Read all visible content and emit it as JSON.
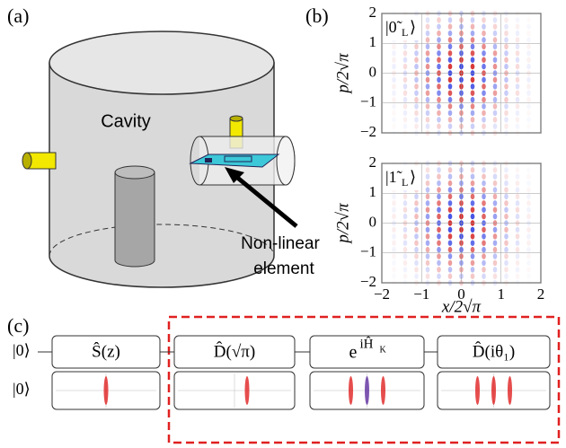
{
  "panel_a": {
    "label": "(a)",
    "cavity": "Cavity",
    "element": [
      "Non-linear",
      "element"
    ]
  },
  "panel_b": {
    "label": "(b)",
    "plots": [
      {
        "state": {
          "main": "|0̃",
          "sub": "L",
          "close": "⟩"
        }
      },
      {
        "state": {
          "main": "|1̃",
          "sub": "L",
          "close": "⟩"
        }
      }
    ],
    "ylabel": "p/2√π",
    "xlabel": "x/2√π",
    "xlim": [
      -2,
      2
    ],
    "ylim": [
      -2,
      2
    ],
    "xticks": [
      {
        "value": -2,
        "label": "−2"
      },
      {
        "value": -1,
        "label": "−1"
      },
      0,
      1,
      2
    ],
    "yticks": [
      {
        "value": -2,
        "label": "−2"
      },
      {
        "value": -1,
        "label": "−1"
      },
      0,
      1,
      2
    ]
  },
  "panel_c": {
    "label": "(c)",
    "input": [
      "|0⟩",
      "|0⟩"
    ],
    "gates": [
      "Ŝ(z)",
      "D̂(√π)",
      {
        "base": "e",
        "sup": "iĤ",
        "sub": "K"
      },
      "D̂(iθ₁)"
    ]
  }
}
